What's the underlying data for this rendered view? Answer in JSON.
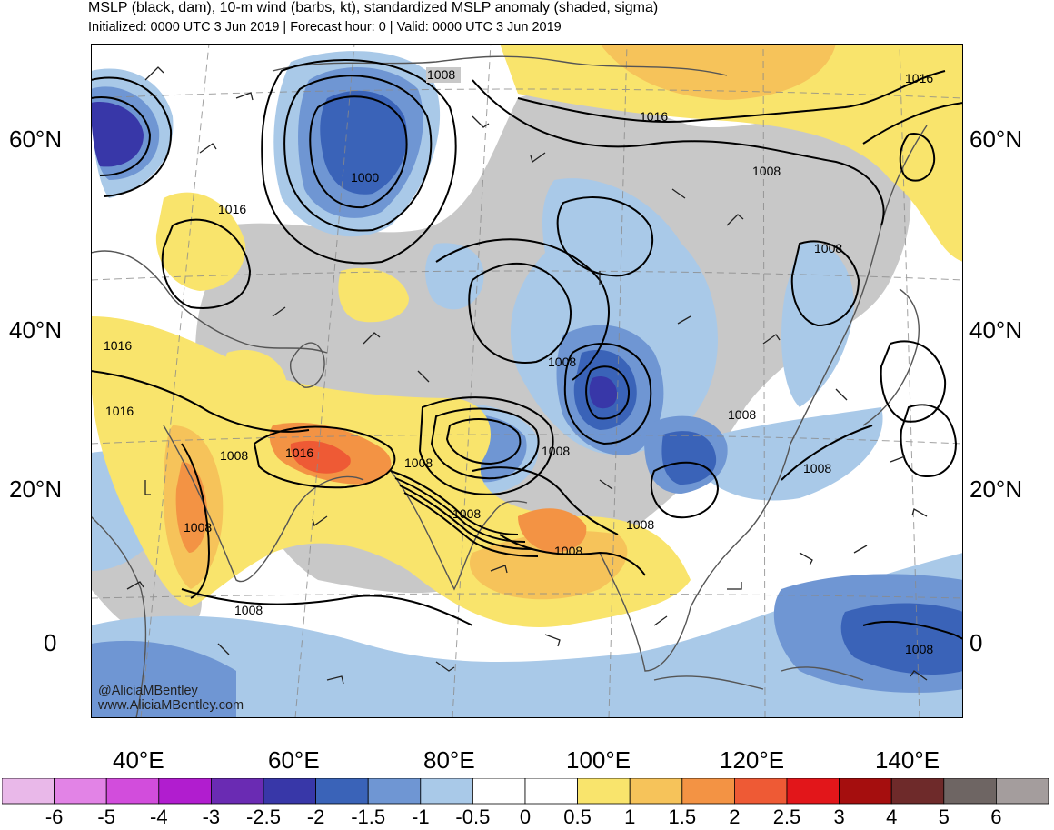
{
  "header": {
    "title": "MSLP (black, dam), 10-m wind (barbs, kt), standardized MSLP anomaly (shaded, sigma)",
    "subtitle": "Initialized: 0000 UTC 3 Jun 2019 | Forecast hour: 0 | Valid: 0000 UTC 3 Jun 2019"
  },
  "axes": {
    "lat_labels": [
      "60°N",
      "40°N",
      "20°N",
      "0"
    ],
    "lon_labels": [
      "40°E",
      "60°E",
      "80°E",
      "100°E",
      "120°E",
      "140°E"
    ]
  },
  "isobar_labels": [
    "1008",
    "1000",
    "1016",
    "1016",
    "1008",
    "1008",
    "1016",
    "1016",
    "1008",
    "1016",
    "1008",
    "1016",
    "1008",
    "1008",
    "1008",
    "1008",
    "1008",
    "1008",
    "1008",
    "1008",
    "1008",
    "1008"
  ],
  "credits": {
    "handle": "@AliciaMBentley",
    "url": "www.AliciaMBentley.com"
  },
  "colorbar": {
    "labels": [
      "-6",
      "-5",
      "-4",
      "-3",
      "-2.5",
      "-2",
      "-1.5",
      "-1",
      "-0.5",
      "0",
      "0.5",
      "1",
      "1.5",
      "2",
      "2.5",
      "3",
      "4",
      "5",
      "6"
    ],
    "colors": [
      "#e9b8e9",
      "#e283e6",
      "#d24ddc",
      "#b11dcf",
      "#6a2bb3",
      "#3837a8",
      "#3a63b8",
      "#6f96d3",
      "#a9c9e8",
      "#ffffff",
      "#ffffff",
      "#f9e46c",
      "#f6c35a",
      "#f39344",
      "#ee5a35",
      "#e2161a",
      "#a50e0e",
      "#6e2a2a",
      "#6e6563",
      "#a49d9d"
    ]
  },
  "colors": {
    "land_gray": "#c8c8c8",
    "coast": "#555555",
    "isobar": "#000000"
  }
}
